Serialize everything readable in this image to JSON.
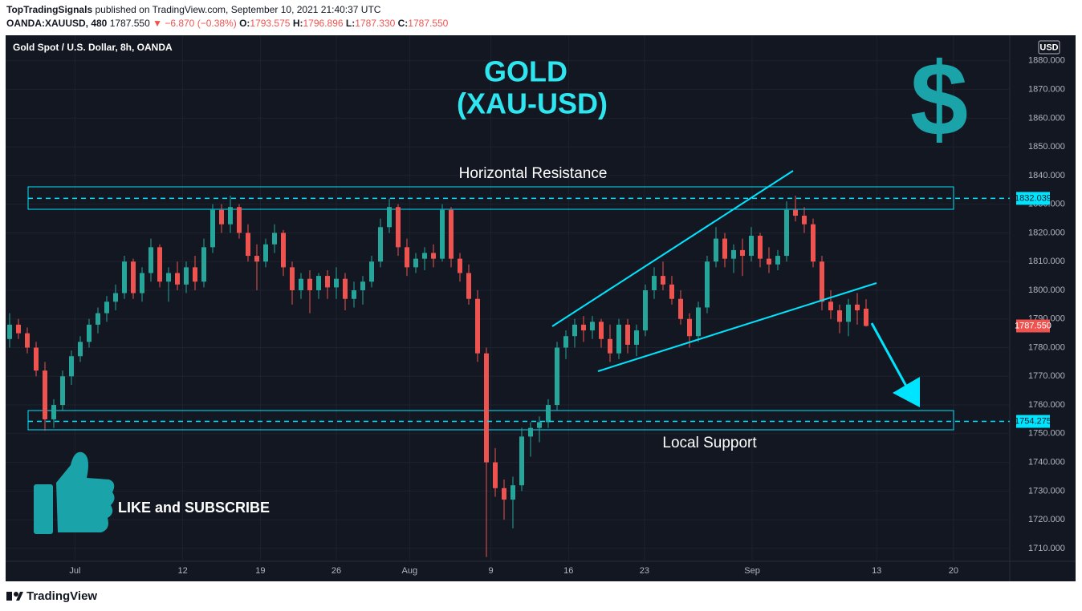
{
  "header": {
    "publisher": "TopTradingSignals",
    "published": "published on TradingView.com, September 10, 2021 21:40:37 UTC",
    "symbol": "OANDA:XAUUSD, 480",
    "last": "1787.550",
    "change": "▼ −6.870 (−0.38%)",
    "ohlc": [
      {
        "label": "O:",
        "value": "1793.575"
      },
      {
        "label": "H:",
        "value": "1796.896"
      },
      {
        "label": "L:",
        "value": "1787.330"
      },
      {
        "label": "C:",
        "value": "1787.550"
      }
    ]
  },
  "chart_data": {
    "type": "candlestick",
    "title": "Gold Spot / U.S. Dollar, 8h, OANDA",
    "currency": "USD",
    "up_color": "#26a69a",
    "down_color": "#ef5350",
    "grid": true,
    "open": [
      1783,
      1788,
      1785,
      1780,
      1772,
      1755,
      1760,
      1770,
      1777,
      1782,
      1788,
      1792,
      1796,
      1799,
      1810,
      1799,
      1806,
      1815,
      1803,
      1806,
      1802,
      1808,
      1803,
      1815,
      1828,
      1823,
      1829,
      1820,
      1812,
      1810,
      1816,
      1820,
      1808,
      1800,
      1804,
      1800,
      1805,
      1801,
      1804,
      1797,
      1800,
      1803,
      1810,
      1822,
      1829,
      1815,
      1808,
      1811,
      1813,
      1811,
      1828,
      1811,
      1806,
      1797,
      1778,
      1740,
      1731,
      1727,
      1732,
      1749,
      1752,
      1754,
      1760,
      1780,
      1784,
      1788,
      1786,
      1789,
      1783,
      1778,
      1788,
      1781,
      1786,
      1800,
      1805,
      1802,
      1797,
      1790,
      1784,
      1794,
      1810,
      1818,
      1811,
      1814,
      1812,
      1819,
      1811,
      1809,
      1812,
      1828,
      1826,
      1823,
      1810,
      1796,
      1793,
      1789,
      1795,
      1793.575
    ],
    "high": [
      1792,
      1790,
      1787,
      1782,
      1775,
      1762,
      1772,
      1779,
      1784,
      1790,
      1794,
      1798,
      1802,
      1812,
      1811,
      1808,
      1818,
      1816,
      1808,
      1810,
      1810,
      1812,
      1818,
      1830,
      1830,
      1833,
      1830,
      1823,
      1816,
      1818,
      1823,
      1821,
      1810,
      1806,
      1807,
      1806,
      1807,
      1808,
      1806,
      1803,
      1805,
      1812,
      1825,
      1832,
      1830,
      1818,
      1813,
      1815,
      1816,
      1830,
      1829,
      1813,
      1809,
      1800,
      1780,
      1745,
      1734,
      1735,
      1752,
      1754,
      1756,
      1762,
      1782,
      1786,
      1790,
      1791,
      1791,
      1790,
      1788,
      1790,
      1790,
      1788,
      1802,
      1808,
      1810,
      1805,
      1800,
      1792,
      1796,
      1812,
      1822,
      1820,
      1816,
      1818,
      1822,
      1820,
      1815,
      1814,
      1831,
      1833,
      1829,
      1825,
      1812,
      1800,
      1795,
      1797,
      1799,
      1796.896
    ],
    "low": [
      1780,
      1783,
      1778,
      1770,
      1751,
      1752,
      1758,
      1767,
      1775,
      1780,
      1785,
      1789,
      1793,
      1797,
      1797,
      1796,
      1803,
      1801,
      1796,
      1800,
      1799,
      1800,
      1801,
      1813,
      1820,
      1820,
      1818,
      1810,
      1800,
      1808,
      1813,
      1805,
      1795,
      1797,
      1792,
      1797,
      1797,
      1797,
      1793,
      1794,
      1795,
      1801,
      1808,
      1820,
      1812,
      1805,
      1806,
      1807,
      1808,
      1810,
      1808,
      1803,
      1795,
      1775,
      1707,
      1728,
      1720,
      1717,
      1730,
      1742,
      1747,
      1752,
      1758,
      1776,
      1780,
      1782,
      1783,
      1780,
      1775,
      1776,
      1778,
      1777,
      1784,
      1797,
      1800,
      1795,
      1788,
      1780,
      1782,
      1792,
      1808,
      1808,
      1806,
      1805,
      1810,
      1808,
      1806,
      1807,
      1810,
      1824,
      1820,
      1808,
      1793,
      1790,
      1785,
      1784,
      1788,
      1787.33
    ],
    "close": [
      1788,
      1785,
      1780,
      1772,
      1755,
      1760,
      1770,
      1777,
      1782,
      1788,
      1792,
      1796,
      1799,
      1810,
      1799,
      1806,
      1815,
      1803,
      1806,
      1802,
      1808,
      1803,
      1815,
      1828,
      1823,
      1829,
      1820,
      1812,
      1810,
      1816,
      1820,
      1808,
      1800,
      1804,
      1800,
      1805,
      1801,
      1804,
      1797,
      1800,
      1803,
      1810,
      1822,
      1829,
      1815,
      1808,
      1811,
      1813,
      1811,
      1828,
      1811,
      1806,
      1797,
      1778,
      1740,
      1731,
      1727,
      1732,
      1749,
      1752,
      1754,
      1760,
      1780,
      1784,
      1788,
      1786,
      1789,
      1783,
      1778,
      1788,
      1781,
      1786,
      1800,
      1805,
      1802,
      1797,
      1790,
      1784,
      1794,
      1810,
      1818,
      1811,
      1814,
      1812,
      1819,
      1811,
      1809,
      1812,
      1828,
      1826,
      1823,
      1810,
      1796,
      1793,
      1789,
      1795,
      1793,
      1787.55
    ],
    "ylim": [
      1705.5,
      1888.9
    ],
    "yticks": [
      {
        "value": 1710,
        "label": "1710.000"
      },
      {
        "value": 1720,
        "label": "1720.000"
      },
      {
        "value": 1730,
        "label": "1730.000"
      },
      {
        "value": 1740,
        "label": "1740.000"
      },
      {
        "value": 1750,
        "label": "1750.000"
      },
      {
        "value": 1760,
        "label": "1760.000"
      },
      {
        "value": 1770,
        "label": "1770.000"
      },
      {
        "value": 1780,
        "label": "1780.000"
      },
      {
        "value": 1790,
        "label": "1790.000"
      },
      {
        "value": 1800,
        "label": "1800.000"
      },
      {
        "value": 1810,
        "label": "1810.000"
      },
      {
        "value": 1820,
        "label": "1820.000"
      },
      {
        "value": 1830,
        "label": "1830.000"
      },
      {
        "value": 1840,
        "label": "1840.000"
      },
      {
        "value": 1850,
        "label": "1850.000"
      },
      {
        "value": 1860,
        "label": "1860.000"
      },
      {
        "value": 1870,
        "label": "1870.000"
      },
      {
        "value": 1880,
        "label": "1880.000"
      }
    ],
    "xticks": [
      {
        "value": 7.4,
        "label": "Jul"
      },
      {
        "value": 19.6,
        "label": "12"
      },
      {
        "value": 28.4,
        "label": "19"
      },
      {
        "value": 37,
        "label": "26"
      },
      {
        "value": 45.3,
        "label": "Aug"
      },
      {
        "value": 54.5,
        "label": "9"
      },
      {
        "value": 63.3,
        "label": "16"
      },
      {
        "value": 71.9,
        "label": "23"
      },
      {
        "value": 84.1,
        "label": "Sep"
      },
      {
        "value": 98.2,
        "label": "13"
      },
      {
        "value": 106.9,
        "label": "20"
      }
    ],
    "price_lines": [
      {
        "value": 1832.039,
        "label": "1832.039",
        "color": "#00e5ff"
      },
      {
        "value": 1754.275,
        "label": "1754.275",
        "color": "#00e5ff"
      }
    ],
    "last_price": {
      "value": 1787.55,
      "label": "1787.550",
      "color": "#ef5350"
    },
    "annotations": {
      "title_1": "GOLD",
      "title_2": "(XAU-USD)",
      "symbol": "$",
      "resistance": "Horizontal Resistance",
      "support": "Local Support",
      "cta": "LIKE and SUBSCRIBE"
    }
  },
  "footer": {
    "brand": "TradingView"
  }
}
